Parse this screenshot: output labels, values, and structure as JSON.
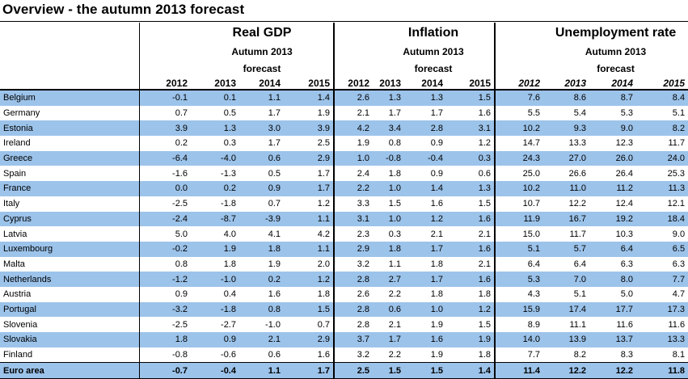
{
  "title": "Overview - the autumn 2013 forecast",
  "groups": {
    "gdp": {
      "name": "Real GDP",
      "sub1": "Autumn 2013",
      "sub2": "forecast"
    },
    "inflation": {
      "name": "Inflation",
      "sub1": "Autumn 2013",
      "sub2": "forecast"
    },
    "unemployment": {
      "name": "Unemployment rate",
      "sub1": "Autumn 2013",
      "sub2": "forecast"
    }
  },
  "years": [
    "2012",
    "2013",
    "2014",
    "2015"
  ],
  "rows": [
    {
      "country": "Belgium",
      "gdp": [
        "-0.1",
        "0.1",
        "1.1",
        "1.4"
      ],
      "inf": [
        "2.6",
        "1.3",
        "1.3",
        "1.5"
      ],
      "unemp": [
        "7.6",
        "8.6",
        "8.7",
        "8.4"
      ]
    },
    {
      "country": "Germany",
      "gdp": [
        "0.7",
        "0.5",
        "1.7",
        "1.9"
      ],
      "inf": [
        "2.1",
        "1.7",
        "1.7",
        "1.6"
      ],
      "unemp": [
        "5.5",
        "5.4",
        "5.3",
        "5.1"
      ]
    },
    {
      "country": "Estonia",
      "gdp": [
        "3.9",
        "1.3",
        "3.0",
        "3.9"
      ],
      "inf": [
        "4.2",
        "3.4",
        "2.8",
        "3.1"
      ],
      "unemp": [
        "10.2",
        "9.3",
        "9.0",
        "8.2"
      ]
    },
    {
      "country": "Ireland",
      "gdp": [
        "0.2",
        "0.3",
        "1.7",
        "2.5"
      ],
      "inf": [
        "1.9",
        "0.8",
        "0.9",
        "1.2"
      ],
      "unemp": [
        "14.7",
        "13.3",
        "12.3",
        "11.7"
      ]
    },
    {
      "country": "Greece",
      "gdp": [
        "-6.4",
        "-4.0",
        "0.6",
        "2.9"
      ],
      "inf": [
        "1.0",
        "-0.8",
        "-0.4",
        "0.3"
      ],
      "unemp": [
        "24.3",
        "27.0",
        "26.0",
        "24.0"
      ]
    },
    {
      "country": "Spain",
      "gdp": [
        "-1.6",
        "-1.3",
        "0.5",
        "1.7"
      ],
      "inf": [
        "2.4",
        "1.8",
        "0.9",
        "0.6"
      ],
      "unemp": [
        "25.0",
        "26.6",
        "26.4",
        "25.3"
      ]
    },
    {
      "country": "France",
      "gdp": [
        "0.0",
        "0.2",
        "0.9",
        "1.7"
      ],
      "inf": [
        "2.2",
        "1.0",
        "1.4",
        "1.3"
      ],
      "unemp": [
        "10.2",
        "11.0",
        "11.2",
        "11.3"
      ]
    },
    {
      "country": "Italy",
      "gdp": [
        "-2.5",
        "-1.8",
        "0.7",
        "1.2"
      ],
      "inf": [
        "3.3",
        "1.5",
        "1.6",
        "1.5"
      ],
      "unemp": [
        "10.7",
        "12.2",
        "12.4",
        "12.1"
      ]
    },
    {
      "country": "Cyprus",
      "gdp": [
        "-2.4",
        "-8.7",
        "-3.9",
        "1.1"
      ],
      "inf": [
        "3.1",
        "1.0",
        "1.2",
        "1.6"
      ],
      "unemp": [
        "11.9",
        "16.7",
        "19.2",
        "18.4"
      ]
    },
    {
      "country": "Latvia",
      "gdp": [
        "5.0",
        "4.0",
        "4.1",
        "4.2"
      ],
      "inf": [
        "2.3",
        "0.3",
        "2.1",
        "2.1"
      ],
      "unemp": [
        "15.0",
        "11.7",
        "10.3",
        "9.0"
      ]
    },
    {
      "country": "Luxembourg",
      "gdp": [
        "-0.2",
        "1.9",
        "1.8",
        "1.1"
      ],
      "inf": [
        "2.9",
        "1.8",
        "1.7",
        "1.6"
      ],
      "unemp": [
        "5.1",
        "5.7",
        "6.4",
        "6.5"
      ]
    },
    {
      "country": "Malta",
      "gdp": [
        "0.8",
        "1.8",
        "1.9",
        "2.0"
      ],
      "inf": [
        "3.2",
        "1.1",
        "1.8",
        "2.1"
      ],
      "unemp": [
        "6.4",
        "6.4",
        "6.3",
        "6.3"
      ]
    },
    {
      "country": "Netherlands",
      "gdp": [
        "-1.2",
        "-1.0",
        "0.2",
        "1.2"
      ],
      "inf": [
        "2.8",
        "2.7",
        "1.7",
        "1.6"
      ],
      "unemp": [
        "5.3",
        "7.0",
        "8.0",
        "7.7"
      ]
    },
    {
      "country": "Austria",
      "gdp": [
        "0.9",
        "0.4",
        "1.6",
        "1.8"
      ],
      "inf": [
        "2.6",
        "2.2",
        "1.8",
        "1.8"
      ],
      "unemp": [
        "4.3",
        "5.1",
        "5.0",
        "4.7"
      ]
    },
    {
      "country": "Portugal",
      "gdp": [
        "-3.2",
        "-1.8",
        "0.8",
        "1.5"
      ],
      "inf": [
        "2.8",
        "0.6",
        "1.0",
        "1.2"
      ],
      "unemp": [
        "15.9",
        "17.4",
        "17.7",
        "17.3"
      ]
    },
    {
      "country": "Slovenia",
      "gdp": [
        "-2.5",
        "-2.7",
        "-1.0",
        "0.7"
      ],
      "inf": [
        "2.8",
        "2.1",
        "1.9",
        "1.5"
      ],
      "unemp": [
        "8.9",
        "11.1",
        "11.6",
        "11.6"
      ]
    },
    {
      "country": "Slovakia",
      "gdp": [
        "1.8",
        "0.9",
        "2.1",
        "2.9"
      ],
      "inf": [
        "3.7",
        "1.7",
        "1.6",
        "1.9"
      ],
      "unemp": [
        "14.0",
        "13.9",
        "13.7",
        "13.3"
      ]
    },
    {
      "country": "Finland",
      "gdp": [
        "-0.8",
        "-0.6",
        "0.6",
        "1.6"
      ],
      "inf": [
        "3.2",
        "2.2",
        "1.9",
        "1.8"
      ],
      "unemp": [
        "7.7",
        "8.2",
        "8.3",
        "8.1"
      ]
    }
  ],
  "euro_area": {
    "country": "Euro area",
    "gdp": [
      "-0.7",
      "-0.4",
      "1.1",
      "1.7"
    ],
    "inf": [
      "2.5",
      "1.5",
      "1.5",
      "1.4"
    ],
    "unemp": [
      "11.4",
      "12.2",
      "12.2",
      "11.8"
    ]
  },
  "colors": {
    "stripe": "#9cc3ea",
    "rule": "#000000"
  }
}
